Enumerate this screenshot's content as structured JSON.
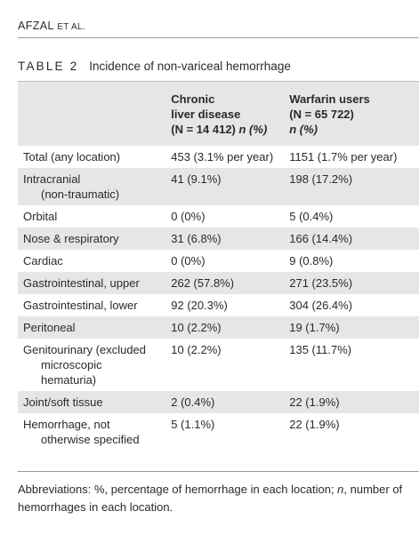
{
  "running_head": {
    "author": "AFZAL",
    "etal": "ET AL."
  },
  "caption": {
    "label": "TABLE 2",
    "title": "Incidence of non-variceal hemorrhage"
  },
  "table": {
    "header": {
      "col1": "",
      "col2_line1": "Chronic",
      "col2_line2": "liver disease",
      "col2_line3": "(N = 14 412)",
      "col2_line3_unit": "n (%)",
      "col3_line1": "Warfarin users",
      "col3_line2": "(N = 65 722)",
      "col3_line3": "n (%)"
    },
    "rows": [
      {
        "location": "Total (any location)",
        "location_cont": "",
        "location_cont2": "",
        "cld": "453 (3.1% per year)",
        "warfarin": "1151 (1.7% per year)"
      },
      {
        "location": "Intracranial",
        "location_cont": "(non-traumatic)",
        "location_cont2": "",
        "cld": "41 (9.1%)",
        "warfarin": "198 (17.2%)"
      },
      {
        "location": "Orbital",
        "location_cont": "",
        "location_cont2": "",
        "cld": "0 (0%)",
        "warfarin": "5 (0.4%)"
      },
      {
        "location": "Nose & respiratory",
        "location_cont": "",
        "location_cont2": "",
        "cld": "31 (6.8%)",
        "warfarin": "166 (14.4%)"
      },
      {
        "location": "Cardiac",
        "location_cont": "",
        "location_cont2": "",
        "cld": "0 (0%)",
        "warfarin": "9 (0.8%)"
      },
      {
        "location": "Gastrointestinal, upper",
        "location_cont": "",
        "location_cont2": "",
        "cld": "262 (57.8%)",
        "warfarin": "271 (23.5%)"
      },
      {
        "location": "Gastrointestinal, lower",
        "location_cont": "",
        "location_cont2": "",
        "cld": "92 (20.3%)",
        "warfarin": "304 (26.4%)"
      },
      {
        "location": "Peritoneal",
        "location_cont": "",
        "location_cont2": "",
        "cld": "10 (2.2%)",
        "warfarin": "19 (1.7%)"
      },
      {
        "location": "Genitourinary (excluded",
        "location_cont": "microscopic",
        "location_cont2": "hematuria)",
        "cld": "10 (2.2%)",
        "warfarin": "135 (11.7%)"
      },
      {
        "location": "Joint/soft tissue",
        "location_cont": "",
        "location_cont2": "",
        "cld": "2 (0.4%)",
        "warfarin": "22 (1.9%)"
      },
      {
        "location": "Hemorrhage, not",
        "location_cont": "otherwise specified",
        "location_cont2": "",
        "cld": "5 (1.1%)",
        "warfarin": "22 (1.9%)"
      }
    ]
  },
  "footnote": {
    "prefix": "Abbreviations: %, percentage of hemorrhage in each location; ",
    "n_symbol": "n",
    "suffix": ", number of hemorrhages in each location."
  }
}
